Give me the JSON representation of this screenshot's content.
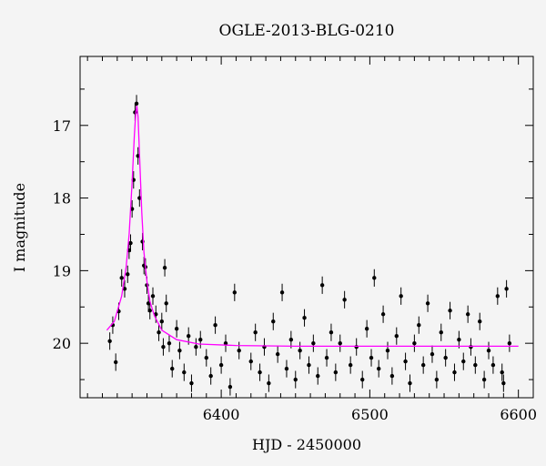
{
  "chart_data": {
    "type": "scatter",
    "title": "OGLE-2013-BLG-0210",
    "xlabel": "HJD - 2450000",
    "ylabel": "I magnitude",
    "xlim": [
      6305,
      6610
    ],
    "ylim": [
      20.75,
      16.05
    ],
    "y_inverted": true,
    "xticks": [
      6400,
      6500,
      6600
    ],
    "yticks": [
      17,
      18,
      19,
      20
    ],
    "colors": {
      "points": "#000000",
      "model": "#ff00ff",
      "background": "#f4f4f4",
      "plot_bg": "#f4f4f4"
    },
    "series": [
      {
        "kind": "observations",
        "points": [
          [
            6325,
            19.97
          ],
          [
            6327,
            19.75
          ],
          [
            6329,
            20.26
          ],
          [
            6331,
            19.56
          ],
          [
            6333,
            19.1
          ],
          [
            6335,
            19.25
          ],
          [
            6337,
            19.05
          ],
          [
            6338,
            18.72
          ],
          [
            6339,
            18.62
          ],
          [
            6340,
            18.15
          ],
          [
            6341,
            17.75
          ],
          [
            6342,
            16.82
          ],
          [
            6343,
            16.7
          ],
          [
            6344,
            17.42
          ],
          [
            6345,
            18.0
          ],
          [
            6347,
            18.6
          ],
          [
            6348,
            18.93
          ],
          [
            6349,
            18.95
          ],
          [
            6350,
            19.2
          ],
          [
            6351,
            19.45
          ],
          [
            6352,
            19.55
          ],
          [
            6354,
            19.35
          ],
          [
            6356,
            19.6
          ],
          [
            6358,
            19.85
          ],
          [
            6360,
            19.7
          ],
          [
            6361,
            20.05
          ],
          [
            6362,
            18.96
          ],
          [
            6363,
            19.45
          ],
          [
            6365,
            20.0
          ],
          [
            6367,
            20.35
          ],
          [
            6370,
            19.8
          ],
          [
            6372,
            20.1
          ],
          [
            6375,
            20.4
          ],
          [
            6378,
            19.9
          ],
          [
            6380,
            20.55
          ],
          [
            6383,
            20.05
          ],
          [
            6386,
            19.95
          ],
          [
            6390,
            20.2
          ],
          [
            6393,
            20.45
          ],
          [
            6396,
            19.75
          ],
          [
            6400,
            20.3
          ],
          [
            6403,
            20.0
          ],
          [
            6406,
            20.6
          ],
          [
            6409,
            19.3
          ],
          [
            6412,
            20.1
          ],
          [
            6420,
            20.25
          ],
          [
            6423,
            19.85
          ],
          [
            6426,
            20.4
          ],
          [
            6429,
            20.05
          ],
          [
            6432,
            20.55
          ],
          [
            6435,
            19.7
          ],
          [
            6438,
            20.15
          ],
          [
            6441,
            19.3
          ],
          [
            6444,
            20.35
          ],
          [
            6447,
            19.95
          ],
          [
            6450,
            20.5
          ],
          [
            6453,
            20.1
          ],
          [
            6456,
            19.65
          ],
          [
            6459,
            20.3
          ],
          [
            6462,
            20.0
          ],
          [
            6465,
            20.45
          ],
          [
            6468,
            19.2
          ],
          [
            6471,
            20.2
          ],
          [
            6474,
            19.85
          ],
          [
            6477,
            20.4
          ],
          [
            6480,
            20.0
          ],
          [
            6483,
            19.4
          ],
          [
            6487,
            20.3
          ],
          [
            6491,
            20.05
          ],
          [
            6495,
            20.5
          ],
          [
            6498,
            19.8
          ],
          [
            6501,
            20.2
          ],
          [
            6503,
            19.1
          ],
          [
            6506,
            20.35
          ],
          [
            6509,
            19.6
          ],
          [
            6512,
            20.1
          ],
          [
            6515,
            20.45
          ],
          [
            6518,
            19.9
          ],
          [
            6521,
            19.35
          ],
          [
            6524,
            20.25
          ],
          [
            6527,
            20.55
          ],
          [
            6530,
            20.0
          ],
          [
            6533,
            19.75
          ],
          [
            6536,
            20.3
          ],
          [
            6539,
            19.45
          ],
          [
            6542,
            20.15
          ],
          [
            6545,
            20.5
          ],
          [
            6548,
            19.85
          ],
          [
            6551,
            20.2
          ],
          [
            6554,
            19.55
          ],
          [
            6557,
            20.4
          ],
          [
            6560,
            19.95
          ],
          [
            6563,
            20.25
          ],
          [
            6566,
            19.6
          ],
          [
            6568,
            20.05
          ],
          [
            6571,
            20.3
          ],
          [
            6574,
            19.7
          ],
          [
            6577,
            20.5
          ],
          [
            6580,
            20.1
          ],
          [
            6583,
            20.3
          ],
          [
            6586,
            19.35
          ],
          [
            6589,
            20.4
          ],
          [
            6590,
            20.55
          ],
          [
            6592,
            19.25
          ],
          [
            6594,
            20.0
          ]
        ]
      },
      {
        "kind": "model",
        "points": [
          [
            6323,
            19.82
          ],
          [
            6328,
            19.7
          ],
          [
            6333,
            19.35
          ],
          [
            6336,
            18.95
          ],
          [
            6338,
            18.5
          ],
          [
            6340,
            17.8
          ],
          [
            6341.5,
            17.15
          ],
          [
            6342.5,
            16.82
          ],
          [
            6343.2,
            16.73
          ],
          [
            6344,
            16.88
          ],
          [
            6345,
            17.4
          ],
          [
            6346.5,
            18.2
          ],
          [
            6348,
            18.75
          ],
          [
            6350,
            19.15
          ],
          [
            6352,
            19.42
          ],
          [
            6355,
            19.62
          ],
          [
            6360,
            19.82
          ],
          [
            6370,
            19.95
          ],
          [
            6385,
            20.01
          ],
          [
            6410,
            20.03
          ],
          [
            6450,
            20.04
          ],
          [
            6500,
            20.04
          ],
          [
            6560,
            20.04
          ],
          [
            6600,
            20.04
          ]
        ]
      }
    ]
  }
}
